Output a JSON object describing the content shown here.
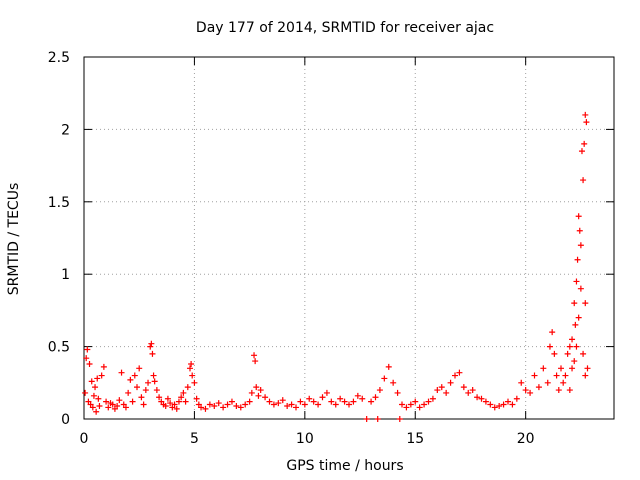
{
  "chart_data": {
    "type": "scatter",
    "title": "Day 177 of 2014, SRMTID for receiver ajac",
    "xlabel": "GPS time / hours",
    "ylabel": "SRMTID / TECUs",
    "xlim": [
      0,
      24
    ],
    "ylim": [
      0,
      2.5
    ],
    "xticks": [
      0,
      5,
      10,
      15,
      20
    ],
    "yticks": [
      0,
      0.5,
      1,
      1.5,
      2,
      2.5
    ],
    "xtick_labels": [
      "0",
      "5",
      "10",
      "15",
      "20"
    ],
    "ytick_labels": [
      "0",
      "0.5",
      "1",
      "1.5",
      "2",
      "2.5"
    ],
    "grid": true,
    "marker": "+",
    "marker_color": "#ff0000",
    "series": [
      {
        "name": "SRMTID",
        "points": [
          [
            0.05,
            0.18
          ],
          [
            0.1,
            0.42
          ],
          [
            0.15,
            0.48
          ],
          [
            0.2,
            0.12
          ],
          [
            0.25,
            0.38
          ],
          [
            0.3,
            0.1
          ],
          [
            0.35,
            0.26
          ],
          [
            0.4,
            0.08
          ],
          [
            0.45,
            0.16
          ],
          [
            0.5,
            0.22
          ],
          [
            0.55,
            0.05
          ],
          [
            0.6,
            0.28
          ],
          [
            0.65,
            0.14
          ],
          [
            0.7,
            0.09
          ],
          [
            0.8,
            0.3
          ],
          [
            0.9,
            0.36
          ],
          [
            1.0,
            0.12
          ],
          [
            1.1,
            0.08
          ],
          [
            1.2,
            0.11
          ],
          [
            1.3,
            0.1
          ],
          [
            1.4,
            0.07
          ],
          [
            1.5,
            0.09
          ],
          [
            1.6,
            0.13
          ],
          [
            1.7,
            0.32
          ],
          [
            1.8,
            0.1
          ],
          [
            1.9,
            0.08
          ],
          [
            2.0,
            0.18
          ],
          [
            2.1,
            0.27
          ],
          [
            2.2,
            0.12
          ],
          [
            2.3,
            0.3
          ],
          [
            2.4,
            0.22
          ],
          [
            2.5,
            0.35
          ],
          [
            2.6,
            0.15
          ],
          [
            2.7,
            0.1
          ],
          [
            2.8,
            0.2
          ],
          [
            2.9,
            0.25
          ],
          [
            3.0,
            0.5
          ],
          [
            3.05,
            0.52
          ],
          [
            3.1,
            0.45
          ],
          [
            3.15,
            0.3
          ],
          [
            3.2,
            0.26
          ],
          [
            3.3,
            0.2
          ],
          [
            3.4,
            0.15
          ],
          [
            3.5,
            0.12
          ],
          [
            3.6,
            0.1
          ],
          [
            3.7,
            0.09
          ],
          [
            3.8,
            0.14
          ],
          [
            3.9,
            0.11
          ],
          [
            4.0,
            0.08
          ],
          [
            4.1,
            0.1
          ],
          [
            4.2,
            0.07
          ],
          [
            4.3,
            0.12
          ],
          [
            4.4,
            0.15
          ],
          [
            4.5,
            0.18
          ],
          [
            4.6,
            0.12
          ],
          [
            4.7,
            0.22
          ],
          [
            4.8,
            0.35
          ],
          [
            4.85,
            0.38
          ],
          [
            4.9,
            0.3
          ],
          [
            5.0,
            0.25
          ],
          [
            5.1,
            0.14
          ],
          [
            5.2,
            0.1
          ],
          [
            5.3,
            0.08
          ],
          [
            5.5,
            0.07
          ],
          [
            5.7,
            0.1
          ],
          [
            5.9,
            0.09
          ],
          [
            6.1,
            0.11
          ],
          [
            6.3,
            0.08
          ],
          [
            6.5,
            0.1
          ],
          [
            6.7,
            0.12
          ],
          [
            6.9,
            0.09
          ],
          [
            7.1,
            0.08
          ],
          [
            7.3,
            0.1
          ],
          [
            7.5,
            0.12
          ],
          [
            7.6,
            0.18
          ],
          [
            7.7,
            0.44
          ],
          [
            7.75,
            0.4
          ],
          [
            7.8,
            0.22
          ],
          [
            7.9,
            0.16
          ],
          [
            8.0,
            0.2
          ],
          [
            8.2,
            0.15
          ],
          [
            8.4,
            0.12
          ],
          [
            8.6,
            0.1
          ],
          [
            8.8,
            0.11
          ],
          [
            9.0,
            0.13
          ],
          [
            9.2,
            0.09
          ],
          [
            9.4,
            0.1
          ],
          [
            9.6,
            0.08
          ],
          [
            9.8,
            0.12
          ],
          [
            10.0,
            0.1
          ],
          [
            10.2,
            0.14
          ],
          [
            10.4,
            0.12
          ],
          [
            10.6,
            0.1
          ],
          [
            10.8,
            0.15
          ],
          [
            11.0,
            0.18
          ],
          [
            11.2,
            0.12
          ],
          [
            11.4,
            0.1
          ],
          [
            11.6,
            0.14
          ],
          [
            11.8,
            0.12
          ],
          [
            12.0,
            0.1
          ],
          [
            12.2,
            0.12
          ],
          [
            12.4,
            0.16
          ],
          [
            12.6,
            0.14
          ],
          [
            12.8,
            0.0
          ],
          [
            13.0,
            0.12
          ],
          [
            13.2,
            0.15
          ],
          [
            13.3,
            0.0
          ],
          [
            13.4,
            0.2
          ],
          [
            13.6,
            0.28
          ],
          [
            13.8,
            0.36
          ],
          [
            14.0,
            0.25
          ],
          [
            14.2,
            0.18
          ],
          [
            14.3,
            0.0
          ],
          [
            14.4,
            0.1
          ],
          [
            14.6,
            0.08
          ],
          [
            14.8,
            0.1
          ],
          [
            15.0,
            0.12
          ],
          [
            15.2,
            0.08
          ],
          [
            15.4,
            0.1
          ],
          [
            15.6,
            0.12
          ],
          [
            15.8,
            0.14
          ],
          [
            16.0,
            0.2
          ],
          [
            16.2,
            0.22
          ],
          [
            16.4,
            0.18
          ],
          [
            16.6,
            0.25
          ],
          [
            16.8,
            0.3
          ],
          [
            17.0,
            0.32
          ],
          [
            17.2,
            0.22
          ],
          [
            17.4,
            0.18
          ],
          [
            17.6,
            0.2
          ],
          [
            17.8,
            0.15
          ],
          [
            18.0,
            0.14
          ],
          [
            18.2,
            0.12
          ],
          [
            18.4,
            0.1
          ],
          [
            18.6,
            0.08
          ],
          [
            18.8,
            0.09
          ],
          [
            19.0,
            0.1
          ],
          [
            19.2,
            0.12
          ],
          [
            19.4,
            0.1
          ],
          [
            19.6,
            0.14
          ],
          [
            19.8,
            0.25
          ],
          [
            20.0,
            0.2
          ],
          [
            20.2,
            0.18
          ],
          [
            20.4,
            0.3
          ],
          [
            20.6,
            0.22
          ],
          [
            20.8,
            0.35
          ],
          [
            21.0,
            0.25
          ],
          [
            21.1,
            0.5
          ],
          [
            21.2,
            0.6
          ],
          [
            21.3,
            0.45
          ],
          [
            21.4,
            0.3
          ],
          [
            21.5,
            0.2
          ],
          [
            21.6,
            0.35
          ],
          [
            21.7,
            0.25
          ],
          [
            21.8,
            0.3
          ],
          [
            21.9,
            0.45
          ],
          [
            22.0,
            0.5
          ],
          [
            22.1,
            0.55
          ],
          [
            22.2,
            0.8
          ],
          [
            22.25,
            0.65
          ],
          [
            22.3,
            0.95
          ],
          [
            22.35,
            1.1
          ],
          [
            22.4,
            1.4
          ],
          [
            22.45,
            1.3
          ],
          [
            22.5,
            1.2
          ],
          [
            22.55,
            1.85
          ],
          [
            22.6,
            1.65
          ],
          [
            22.65,
            1.9
          ],
          [
            22.7,
            2.1
          ],
          [
            22.75,
            2.05
          ],
          [
            22.6,
            0.45
          ],
          [
            22.7,
            0.3
          ],
          [
            22.8,
            0.35
          ],
          [
            22.4,
            0.7
          ],
          [
            22.5,
            0.9
          ],
          [
            22.7,
            0.8
          ],
          [
            22.2,
            0.4
          ],
          [
            22.3,
            0.5
          ],
          [
            22.1,
            0.35
          ],
          [
            22.0,
            0.2
          ]
        ]
      }
    ]
  }
}
